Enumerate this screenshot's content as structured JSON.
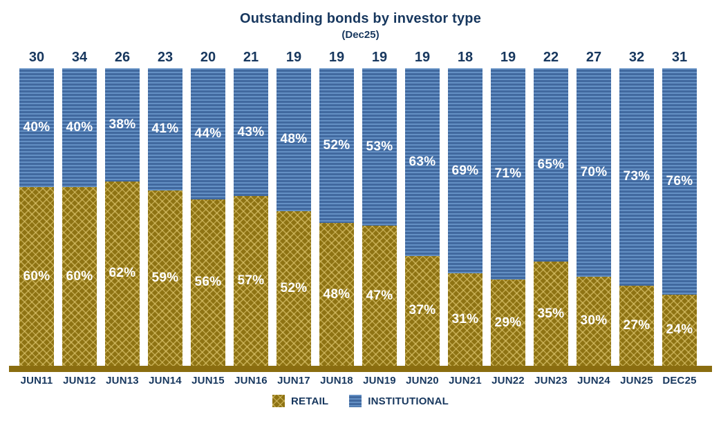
{
  "title": "Outstanding bonds by investor type",
  "subtitle": "(Dec25)",
  "legend": [
    {
      "label": "RETAIL"
    },
    {
      "label": "INSTITUTIONAL"
    }
  ],
  "colors": {
    "text_navy": "#17375e",
    "retail_base": "#8e7313",
    "retail_hatch": "#dfc770",
    "institutional_base": "#41699f",
    "institutional_stripe": "#6490c4",
    "axis_line": "#8a6d10",
    "value_label_text": "#ffffff"
  },
  "chart_data": {
    "type": "bar",
    "stacked": true,
    "unit": "percent of total",
    "categories": [
      "JUN11",
      "JUN12",
      "JUN13",
      "JUN14",
      "JUN15",
      "JUN16",
      "JUN17",
      "JUN18",
      "JUN19",
      "JUN20",
      "JUN21",
      "JUN22",
      "JUN23",
      "JUN24",
      "JUN25",
      "DEC25"
    ],
    "totals": [
      30,
      34,
      26,
      23,
      20,
      21,
      19,
      19,
      19,
      19,
      18,
      19,
      22,
      27,
      32,
      31
    ],
    "series": [
      {
        "name": "RETAIL",
        "values": [
          60,
          60,
          62,
          59,
          56,
          57,
          52,
          48,
          47,
          37,
          31,
          29,
          35,
          30,
          27,
          24
        ]
      },
      {
        "name": "INSTITUTIONAL",
        "values": [
          40,
          40,
          38,
          41,
          44,
          43,
          48,
          52,
          53,
          63,
          69,
          71,
          65,
          70,
          73,
          76
        ]
      }
    ],
    "value_suffix": "%",
    "title": "Outstanding bonds by investor type",
    "subtitle": "(Dec25)",
    "ylim": [
      0,
      100
    ],
    "grid": false,
    "legend_position": "bottom"
  }
}
